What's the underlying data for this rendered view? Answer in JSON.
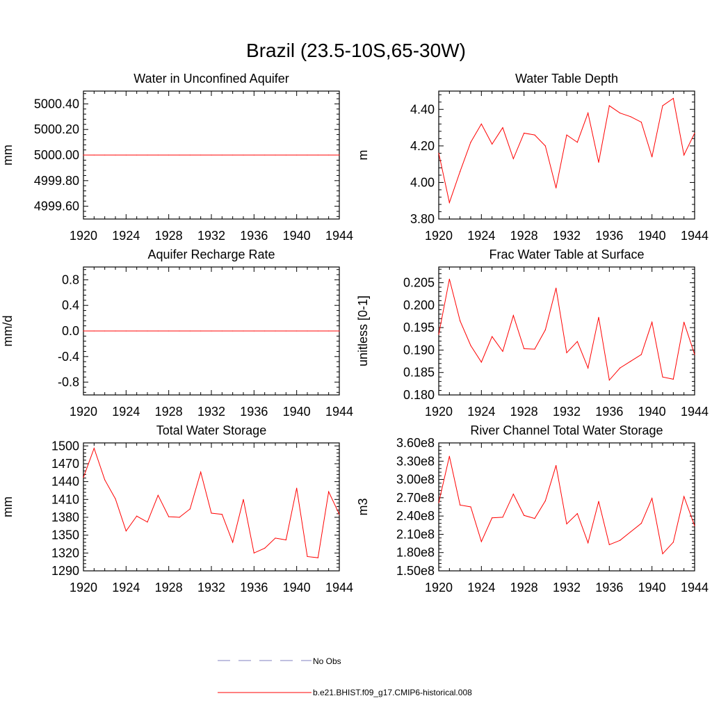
{
  "title": "Brazil (23.5-10S,65-30W)",
  "colors": {
    "model": "#ff0000",
    "obs": "#8080c0",
    "axis": "#000000"
  },
  "legend": {
    "position": "bottom-center",
    "items": [
      {
        "label": "No Obs",
        "style": "dashed",
        "color": "#8080c0"
      },
      {
        "label": "b.e21.BHIST.f09_g17.CMIP6-historical.008",
        "style": "solid",
        "color": "#ff0000"
      }
    ]
  },
  "chart_data": [
    {
      "type": "line",
      "title": "Water in Unconfined Aquifer",
      "ylabel": "mm",
      "xlim": [
        1920,
        1944
      ],
      "ylim": [
        4999.5,
        5000.5
      ],
      "xticks": [
        1920,
        1924,
        1928,
        1932,
        1936,
        1940,
        1944
      ],
      "xtick_labels": [
        "1920",
        "1924",
        "1928",
        "1932",
        "1936",
        "1940",
        "1944"
      ],
      "yticks": [
        4999.6,
        4999.8,
        5000.0,
        5000.2,
        5000.4
      ],
      "ytick_labels": [
        "4999.60",
        "4999.80",
        "5000.00",
        "5000.20",
        "5000.40"
      ],
      "x": [
        1920,
        1921,
        1922,
        1923,
        1924,
        1925,
        1926,
        1927,
        1928,
        1929,
        1930,
        1931,
        1932,
        1933,
        1934,
        1935,
        1936,
        1937,
        1938,
        1939,
        1940,
        1941,
        1942,
        1943,
        1944
      ],
      "series": [
        {
          "values": [
            5000,
            5000,
            5000,
            5000,
            5000,
            5000,
            5000,
            5000,
            5000,
            5000,
            5000,
            5000,
            5000,
            5000,
            5000,
            5000,
            5000,
            5000,
            5000,
            5000,
            5000,
            5000,
            5000,
            5000,
            5000
          ]
        }
      ]
    },
    {
      "type": "line",
      "title": "Water Table Depth",
      "ylabel": "m",
      "xlim": [
        1920,
        1944
      ],
      "ylim": [
        3.8,
        4.5
      ],
      "xticks": [
        1920,
        1924,
        1928,
        1932,
        1936,
        1940,
        1944
      ],
      "xtick_labels": [
        "1920",
        "1924",
        "1928",
        "1932",
        "1936",
        "1940",
        "1944"
      ],
      "yticks": [
        3.8,
        4.0,
        4.2,
        4.4
      ],
      "ytick_labels": [
        "3.80",
        "4.00",
        "4.20",
        "4.40"
      ],
      "x": [
        1920,
        1921,
        1922,
        1923,
        1924,
        1925,
        1926,
        1927,
        1928,
        1929,
        1930,
        1931,
        1932,
        1933,
        1934,
        1935,
        1936,
        1937,
        1938,
        1939,
        1940,
        1941,
        1942,
        1943,
        1944
      ],
      "series": [
        {
          "values": [
            4.16,
            3.89,
            4.06,
            4.22,
            4.32,
            4.21,
            4.3,
            4.13,
            4.27,
            4.26,
            4.2,
            3.97,
            4.26,
            4.22,
            4.38,
            4.11,
            4.42,
            4.38,
            4.36,
            4.33,
            4.14,
            4.42,
            4.46,
            4.15,
            4.27
          ]
        }
      ]
    },
    {
      "type": "line",
      "title": "Aquifer Recharge Rate",
      "ylabel": "mm/d",
      "xlim": [
        1920,
        1944
      ],
      "ylim": [
        -1.0,
        1.0
      ],
      "xticks": [
        1920,
        1924,
        1928,
        1932,
        1936,
        1940,
        1944
      ],
      "xtick_labels": [
        "1920",
        "1924",
        "1928",
        "1932",
        "1936",
        "1940",
        "1944"
      ],
      "yticks": [
        -0.8,
        -0.4,
        0.0,
        0.4,
        0.8
      ],
      "ytick_labels": [
        "-0.8",
        "-0.4",
        "0.0",
        "0.4",
        "0.8"
      ],
      "x": [
        1920,
        1921,
        1922,
        1923,
        1924,
        1925,
        1926,
        1927,
        1928,
        1929,
        1930,
        1931,
        1932,
        1933,
        1934,
        1935,
        1936,
        1937,
        1938,
        1939,
        1940,
        1941,
        1942,
        1943,
        1944
      ],
      "series": [
        {
          "values": [
            0,
            0,
            0,
            0,
            0,
            0,
            0,
            0,
            0,
            0,
            0,
            0,
            0,
            0,
            0,
            0,
            0,
            0,
            0,
            0,
            0,
            0,
            0,
            0,
            0
          ]
        }
      ]
    },
    {
      "type": "line",
      "title": "Frac Water Table at Surface",
      "ylabel": "unitless [0-1]",
      "xlim": [
        1920,
        1944
      ],
      "ylim": [
        0.18,
        0.2085
      ],
      "xticks": [
        1920,
        1924,
        1928,
        1932,
        1936,
        1940,
        1944
      ],
      "xtick_labels": [
        "1920",
        "1924",
        "1928",
        "1932",
        "1936",
        "1940",
        "1944"
      ],
      "yticks": [
        0.18,
        0.185,
        0.19,
        0.195,
        0.2,
        0.205
      ],
      "ytick_labels": [
        "0.180",
        "0.185",
        "0.190",
        "0.195",
        "0.200",
        "0.205"
      ],
      "x": [
        1920,
        1921,
        1922,
        1923,
        1924,
        1925,
        1926,
        1927,
        1928,
        1929,
        1930,
        1931,
        1932,
        1933,
        1934,
        1935,
        1936,
        1937,
        1938,
        1939,
        1940,
        1941,
        1942,
        1943,
        1944
      ],
      "series": [
        {
          "values": [
            0.1935,
            0.2058,
            0.1965,
            0.191,
            0.1873,
            0.193,
            0.1897,
            0.1977,
            0.1903,
            0.1902,
            0.1945,
            0.2038,
            0.1894,
            0.1919,
            0.186,
            0.1973,
            0.1833,
            0.186,
            0.1875,
            0.189,
            0.1962,
            0.184,
            0.1835,
            0.1962,
            0.189
          ]
        }
      ]
    },
    {
      "type": "line",
      "title": "Total Water Storage",
      "ylabel": "mm",
      "xlim": [
        1920,
        1944
      ],
      "ylim": [
        1290,
        1505
      ],
      "xticks": [
        1920,
        1924,
        1928,
        1932,
        1936,
        1940,
        1944
      ],
      "xtick_labels": [
        "1920",
        "1924",
        "1928",
        "1932",
        "1936",
        "1940",
        "1944"
      ],
      "yticks": [
        1290,
        1320,
        1350,
        1380,
        1410,
        1440,
        1470,
        1500
      ],
      "ytick_labels": [
        "1290",
        "1320",
        "1350",
        "1380",
        "1410",
        "1440",
        "1470",
        "1500"
      ],
      "x": [
        1920,
        1921,
        1922,
        1923,
        1924,
        1925,
        1926,
        1927,
        1928,
        1929,
        1930,
        1931,
        1932,
        1933,
        1934,
        1935,
        1936,
        1937,
        1938,
        1939,
        1940,
        1941,
        1942,
        1943,
        1944
      ],
      "series": [
        {
          "values": [
            1447,
            1496,
            1443,
            1411,
            1357,
            1382,
            1372,
            1417,
            1381,
            1380,
            1394,
            1456,
            1387,
            1385,
            1338,
            1410,
            1320,
            1328,
            1345,
            1342,
            1429,
            1314,
            1312,
            1423,
            1385
          ]
        }
      ]
    },
    {
      "type": "line",
      "title": "River Channel Total Water Storage",
      "ylabel": "m3",
      "xlim": [
        1920,
        1944
      ],
      "ylim": [
        150000000,
        360000000
      ],
      "xticks": [
        1920,
        1924,
        1928,
        1932,
        1936,
        1940,
        1944
      ],
      "xtick_labels": [
        "1920",
        "1924",
        "1928",
        "1932",
        "1936",
        "1940",
        "1944"
      ],
      "yticks": [
        150000000,
        180000000,
        210000000,
        240000000,
        270000000,
        300000000,
        330000000,
        360000000
      ],
      "ytick_labels": [
        "1.50e8",
        "1.80e8",
        "2.10e8",
        "2.40e8",
        "2.70e8",
        "3.00e8",
        "3.30e8",
        "3.60e8"
      ],
      "x": [
        1920,
        1921,
        1922,
        1923,
        1924,
        1925,
        1926,
        1927,
        1928,
        1929,
        1930,
        1931,
        1932,
        1933,
        1934,
        1935,
        1936,
        1937,
        1938,
        1939,
        1940,
        1941,
        1942,
        1943,
        1944
      ],
      "series": [
        {
          "values": [
            262000000,
            338000000,
            258000000,
            255000000,
            198000000,
            237000000,
            238000000,
            276000000,
            241000000,
            236000000,
            265000000,
            323000000,
            227000000,
            244000000,
            196000000,
            264000000,
            193000000,
            200000000,
            214000000,
            228000000,
            269000000,
            178000000,
            197000000,
            272000000,
            224000000
          ]
        }
      ]
    }
  ]
}
